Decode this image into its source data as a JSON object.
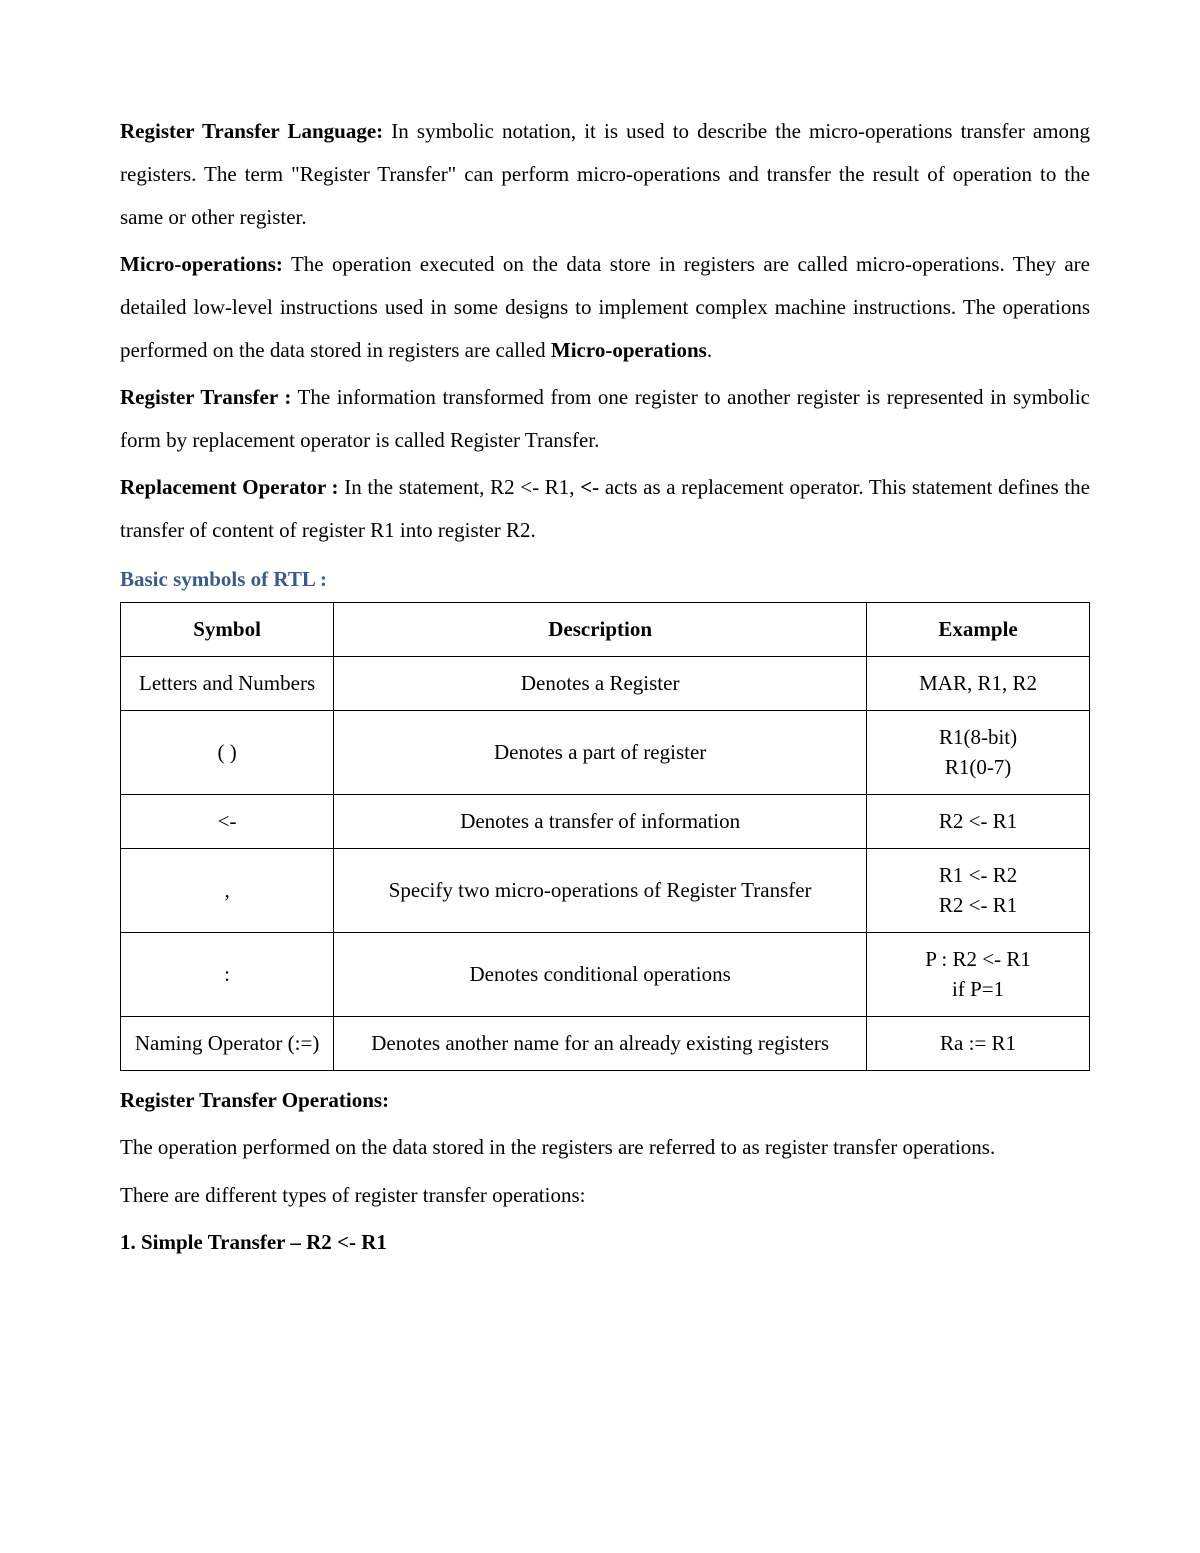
{
  "p1": {
    "t1": "Register Transfer Language:",
    "t2": " In symbolic notation, it is used to describe the micro-operations transfer among registers. The term \"Register Transfer\" can perform micro-operations and transfer the result of operation to the same or other register."
  },
  "p2": {
    "t1": "Micro-operations:",
    "t2": " The operation executed on the data store in registers are called micro-operations. They are detailed low-level instructions used in some designs to implement complex machine instructions. The operations performed on the data stored in registers are called ",
    "t3": "Micro-operations",
    "t4": "."
  },
  "p3": {
    "t1": "Register Transfer :",
    "t2": " The information transformed from one register to another register is represented in symbolic form by replacement operator is called Register Transfer."
  },
  "p4": {
    "t1": "Replacement Operator :",
    "t2": " In the statement, R2 <- R1, ",
    "t3": "<-",
    "t4": " acts as a replacement operator. This statement defines the transfer of content of register R1 into register R2."
  },
  "section1": "Basic symbols of RTL :",
  "table": {
    "headers": {
      "c1": "Symbol",
      "c2": "Description",
      "c3": "Example"
    },
    "rows": [
      {
        "sym": "Letters and Numbers",
        "desc": "Denotes a Register",
        "ex": "MAR, R1, R2"
      },
      {
        "sym": "( )",
        "desc": "Denotes a part of register",
        "ex": "R1(8-bit)\nR1(0-7)"
      },
      {
        "sym": "<-",
        "desc": "Denotes a transfer of information",
        "ex": "R2 <- R1"
      },
      {
        "sym": ",",
        "desc": "Specify two micro-operations of Register Transfer",
        "ex": "R1 <- R2\nR2 <- R1"
      },
      {
        "sym": ":",
        "desc": "Denotes conditional operations",
        "ex": "P : R2 <- R1\nif P=1"
      },
      {
        "sym": "Naming Operator (:=)",
        "desc": "Denotes another name for an already existing registers",
        "ex": "Ra := R1"
      }
    ]
  },
  "p5": "Register Transfer Operations:",
  "p6": "The operation performed on the data stored in the registers are referred to as register transfer operations.",
  "p7": "There are different types of register transfer operations:",
  "p8": "1. Simple Transfer – R2 <- R1"
}
